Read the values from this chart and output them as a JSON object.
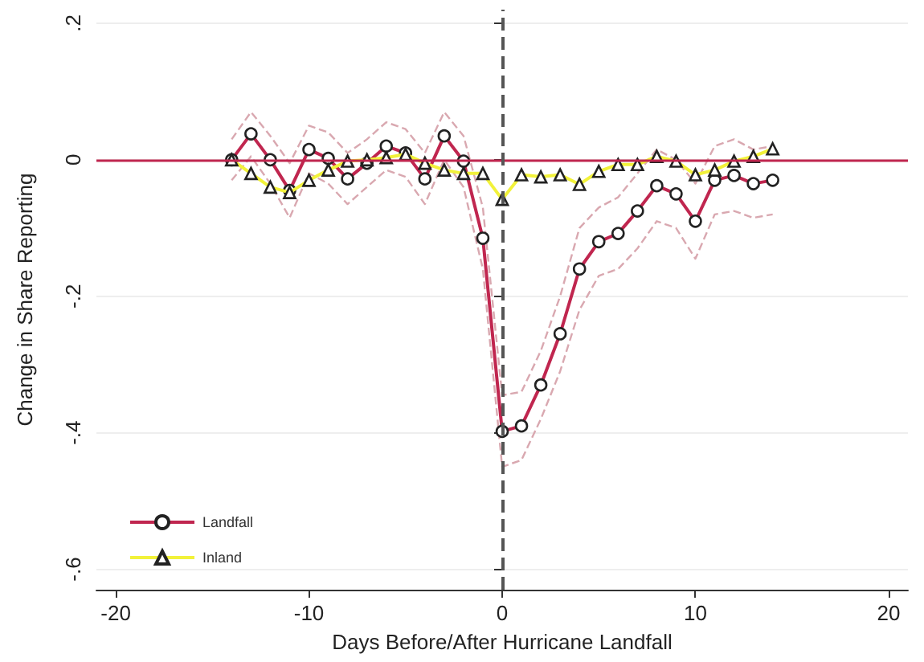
{
  "chart_data": {
    "type": "line",
    "xlabel": "Days Before/After Hurricane Landfall",
    "ylabel": "Change in Share Reporting",
    "x": [
      -14,
      -13,
      -12,
      -11,
      -10,
      -9,
      -8,
      -7,
      -6,
      -5,
      -4,
      -3,
      -2,
      -1,
      0,
      1,
      2,
      3,
      4,
      5,
      6,
      7,
      8,
      9,
      10,
      11,
      12,
      13,
      14
    ],
    "series": [
      {
        "name": "Landfall",
        "color": "#c0264f",
        "marker": "circle",
        "values": [
          0,
          0.038,
          0,
          -0.045,
          0.015,
          0.002,
          -0.028,
          -0.005,
          0.02,
          0.01,
          -0.028,
          0.035,
          -0.002,
          -0.115,
          -0.398,
          -0.39,
          -0.33,
          -0.255,
          -0.16,
          -0.12,
          -0.108,
          -0.075,
          -0.038,
          -0.05,
          -0.09,
          -0.03,
          -0.023,
          -0.035,
          -0.03
        ]
      },
      {
        "name": "Inland",
        "color": "#f2f23a",
        "marker": "triangle",
        "values": [
          0,
          -0.02,
          -0.04,
          -0.048,
          -0.03,
          -0.015,
          -0.002,
          0,
          0.003,
          0.008,
          -0.005,
          -0.015,
          -0.02,
          -0.02,
          -0.058,
          -0.022,
          -0.025,
          -0.022,
          -0.036,
          -0.017,
          -0.007,
          -0.007,
          0.005,
          -0.002,
          -0.022,
          -0.015,
          -0.002,
          0.005,
          0.016
        ]
      },
      {
        "color": "#d9a8b0",
        "marker": "none",
        "line_style": "dashed",
        "values": [
          -0.03,
          0.005,
          -0.035,
          -0.085,
          -0.02,
          -0.035,
          -0.065,
          -0.04,
          -0.015,
          -0.025,
          -0.065,
          0,
          -0.04,
          -0.16,
          -0.45,
          -0.44,
          -0.38,
          -0.31,
          -0.22,
          -0.17,
          -0.16,
          -0.13,
          -0.09,
          -0.1,
          -0.145,
          -0.08,
          -0.075,
          -0.085,
          -0.08
        ]
      },
      {
        "color": "#d9a8b0",
        "marker": "none",
        "line_style": "dashed",
        "values": [
          0.03,
          0.07,
          0.035,
          -0.005,
          0.05,
          0.04,
          0.01,
          0.03,
          0.055,
          0.045,
          0.01,
          0.07,
          0.035,
          -0.07,
          -0.345,
          -0.34,
          -0.28,
          -0.2,
          -0.1,
          -0.07,
          -0.055,
          -0.02,
          0.015,
          0,
          -0.035,
          0.02,
          0.03,
          0.015,
          0.02
        ]
      }
    ],
    "xlim": [
      -21,
      21
    ],
    "xticks": [
      -20,
      -10,
      0,
      10,
      20
    ],
    "ylim": [
      -0.63,
      0.22
    ],
    "yticks": [
      {
        "value": 0.2,
        "label": ".2"
      },
      {
        "value": 0,
        "label": "0"
      },
      {
        "value": -0.2,
        "label": "-.2"
      },
      {
        "value": -0.4,
        "label": "-.4"
      },
      {
        "value": -0.6,
        "label": "-.6"
      }
    ],
    "ref_lines": [
      {
        "axis": "y",
        "value": 0,
        "color": "#c0264f",
        "line_style": "solid"
      },
      {
        "axis": "x",
        "value": 0,
        "color": "#555555",
        "line_style": "dashed"
      }
    ],
    "grid": "y",
    "legend": "bottom left",
    "line_style": "solid"
  }
}
